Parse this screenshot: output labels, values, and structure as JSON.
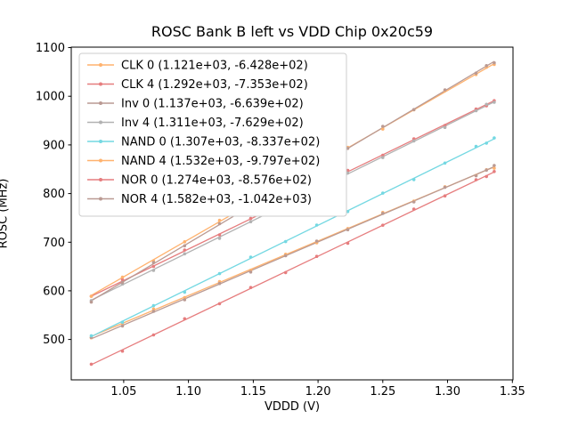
{
  "chart_data": {
    "type": "scatter",
    "title": "ROSC Bank B left vs VDD Chip 0x20c59",
    "xlabel": "VDDD (V)",
    "ylabel": "ROSC (MHz)",
    "xlim": [
      1.0095,
      1.3505
    ],
    "ylim": [
      417,
      1101
    ],
    "xticks": [
      1.05,
      1.1,
      1.15,
      1.2,
      1.25,
      1.3,
      1.35
    ],
    "x_tick_labels": [
      "1.05",
      "1.10",
      "1.15",
      "1.20",
      "1.25",
      "1.30",
      "1.35"
    ],
    "yticks": [
      500,
      600,
      700,
      800,
      900,
      1000,
      1100
    ],
    "grid": false,
    "legend_position": "upper left",
    "legend_border_color": "#cccccc",
    "legend_background": "#ffffff",
    "axis_color": "#000000",
    "x": [
      1.025,
      1.049,
      1.073,
      1.097,
      1.124,
      1.148,
      1.175,
      1.199,
      1.223,
      1.25,
      1.274,
      1.298,
      1.322,
      1.33,
      1.336
    ],
    "series": [
      {
        "label": "CLK 0 (1.121e+03, -6.428e+02)",
        "slope": 1121.0,
        "intercept": -642.8,
        "color": "#ffb26e"
      },
      {
        "label": "CLK 4 (1.292e+03, -7.353e+02)",
        "slope": 1292.0,
        "intercept": -735.3,
        "color": "#e67d7e"
      },
      {
        "label": "Inv 0 (1.137e+03, -6.639e+02)",
        "slope": 1137.0,
        "intercept": -663.9,
        "color": "#ba9a93"
      },
      {
        "label": "Inv 4 (1.311e+03, -7.629e+02)",
        "slope": 1311.0,
        "intercept": -762.9,
        "color": "#b2b2b2"
      },
      {
        "label": "NAND 0 (1.307e+03, -8.337e+02)",
        "slope": 1307.0,
        "intercept": -833.7,
        "color": "#74d8e2"
      },
      {
        "label": "NAND 4 (1.532e+03, -9.797e+02)",
        "slope": 1532.0,
        "intercept": -979.7,
        "color": "#ffb26e"
      },
      {
        "label": "NOR 0 (1.274e+03, -8.576e+02)",
        "slope": 1274.0,
        "intercept": -857.6,
        "color": "#e67d7e"
      },
      {
        "label": "NOR 4 (1.582e+03, -1.042e+03)",
        "slope": 1582.0,
        "intercept": -1042.0,
        "color": "#ba9a93"
      }
    ]
  }
}
